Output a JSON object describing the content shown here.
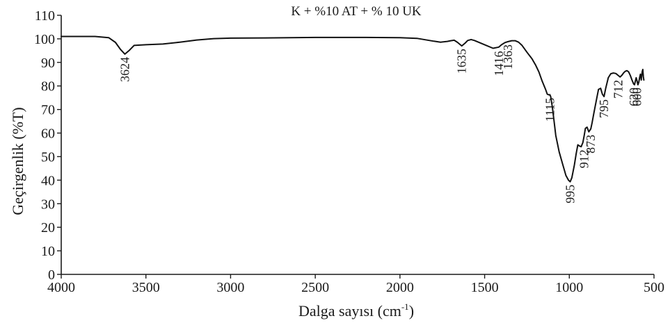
{
  "chart_data": {
    "type": "line",
    "title": "K + %10 AT + % 10 UK",
    "xlabel_main": "Dalga sayısı (cm",
    "xlabel_sup": "-1",
    "xlabel_close": ")",
    "ylabel": "Geçirgenlik (%T)",
    "xlim": [
      4000,
      500
    ],
    "ylim": [
      0,
      110
    ],
    "x_ticks": [
      "4000",
      "3500",
      "3000",
      "2500",
      "2000",
      "1500",
      "1000",
      "500"
    ],
    "y_ticks": [
      "0",
      "10",
      "20",
      "30",
      "40",
      "50",
      "60",
      "70",
      "80",
      "90",
      "100",
      "110"
    ],
    "line_color": "#111111",
    "grid": false,
    "series": [
      {
        "x": [
          4000,
          3800,
          3720,
          3680,
          3650,
          3624,
          3600,
          3570,
          3500,
          3400,
          3300,
          3200,
          3100,
          3000,
          2800,
          2500,
          2200,
          2000,
          1900,
          1800,
          1760,
          1720,
          1700,
          1680,
          1660,
          1635,
          1615,
          1600,
          1580,
          1560,
          1500,
          1450,
          1416,
          1400,
          1380,
          1363,
          1340,
          1320,
          1300,
          1280,
          1250,
          1220,
          1200,
          1180,
          1160,
          1140,
          1130,
          1120,
          1115,
          1110,
          1100,
          1090,
          1080,
          1060,
          1040,
          1020,
          1005,
          995,
          985,
          970,
          960,
          950,
          940,
          930,
          920,
          912,
          905,
          895,
          885,
          873,
          865,
          855,
          840,
          828,
          815,
          805,
          795,
          785,
          770,
          755,
          740,
          725,
          712,
          700,
          690,
          680,
          670,
          660,
          650,
          640,
          630,
          620,
          615,
          610,
          605,
          600,
          595,
          590,
          585,
          580,
          575,
          570,
          566,
          563,
          560
        ],
        "y": [
          101,
          101,
          100.5,
          98.5,
          95.5,
          93.5,
          95,
          97.2,
          97.5,
          97.8,
          98.6,
          99.5,
          100.1,
          100.3,
          100.4,
          100.6,
          100.6,
          100.5,
          100.2,
          99,
          98.6,
          98.9,
          99.2,
          99.4,
          98.5,
          97,
          98.2,
          99.3,
          99.7,
          99.3,
          97.5,
          96,
          96.5,
          97.5,
          98.4,
          98.8,
          99.2,
          99.2,
          98.6,
          97.3,
          94.3,
          91.5,
          89,
          86,
          82,
          78.5,
          76.5,
          76.2,
          76.3,
          75.5,
          71,
          65,
          59,
          52,
          47,
          42,
          40,
          39.3,
          41,
          46.5,
          51,
          55,
          54.5,
          54.2,
          56,
          59,
          62,
          62.5,
          60.5,
          61.8,
          64.5,
          68.5,
          74,
          78.5,
          79,
          76.5,
          75.5,
          79,
          83.5,
          85.2,
          85.5,
          85.3,
          84.5,
          83.8,
          84.5,
          85.5,
          86.2,
          86.5,
          86,
          84.5,
          82.5,
          80.8,
          80.5,
          82,
          83.5,
          82,
          80.5,
          81.5,
          83.5,
          85,
          82.5,
          86,
          87,
          84,
          82.5
        ]
      }
    ],
    "annotations": [
      {
        "text": "3624",
        "x": 3624,
        "y": 93.5
      },
      {
        "text": "1635",
        "x": 1635,
        "y": 97
      },
      {
        "text": "1416",
        "x": 1416,
        "y": 96
      },
      {
        "text": "1363",
        "x": 1363,
        "y": 98.8
      },
      {
        "text": "1115",
        "x": 1115,
        "y": 76.2
      },
      {
        "text": "995",
        "x": 995,
        "y": 39.3
      },
      {
        "text": "912",
        "x": 912,
        "y": 54.2
      },
      {
        "text": "873",
        "x": 873,
        "y": 60.5
      },
      {
        "text": "795",
        "x": 795,
        "y": 75.5
      },
      {
        "text": "712",
        "x": 712,
        "y": 83.8
      },
      {
        "text": "620",
        "x": 620,
        "y": 80.5
      },
      {
        "text": "600",
        "x": 600,
        "y": 80.5
      }
    ]
  }
}
